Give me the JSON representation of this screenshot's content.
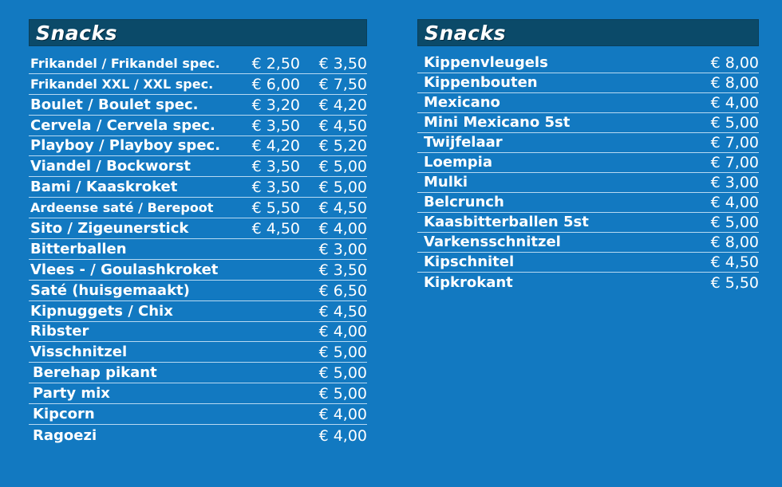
{
  "left_panel": {
    "title": "Snacks",
    "items": [
      {
        "name": "Frikandel / Frikandel spec.",
        "price1": "€ 2,50",
        "price2": "€ 3,50"
      },
      {
        "name": "Frikandel XXL / XXL spec.",
        "price1": "€ 6,00",
        "price2": "€ 7,50"
      },
      {
        "name": "Boulet  / Boulet spec.",
        "price1": "€ 3,20",
        "price2": "€ 4,20"
      },
      {
        "name": "Cervela / Cervela spec.",
        "price1": "€ 3,50",
        "price2": "€ 4,50"
      },
      {
        "name": "Playboy / Playboy spec.",
        "price1": "€ 4,20",
        "price2": "€ 5,20"
      },
      {
        "name": "Viandel / Bockworst",
        "price1": "€ 3,50",
        "price2": "€ 5,00"
      },
      {
        "name": "Bami / Kaaskroket",
        "price1": "€ 3,50",
        "price2": "€ 5,00"
      },
      {
        "name": "Ardeense saté / Berepoot",
        "price1": "€ 5,50",
        "price2": "€ 4,50"
      },
      {
        "name": "Sito / Zigeunerstick",
        "price1": "€ 4,50",
        "price2": "€ 4,00"
      },
      {
        "name": "Bitterballen",
        "price1": "",
        "price2": "€ 3,00"
      },
      {
        "name": "Vlees - / Goulashkroket",
        "price1": "",
        "price2": "€ 3,50"
      },
      {
        "name": "Saté (huisgemaakt)",
        "price1": "",
        "price2": "€ 6,50"
      },
      {
        "name": "Kipnuggets / Chix",
        "price1": "",
        "price2": "€ 4,50"
      },
      {
        "name": "Ribster",
        "price1": "",
        "price2": "€ 4,00"
      },
      {
        "name": "Visschnitzel",
        "price1": "",
        "price2": "€ 5,00"
      },
      {
        "name": "Berehap pikant",
        "price1": "",
        "price2": "€ 5,00"
      },
      {
        "name": "Party mix",
        "price1": "",
        "price2": "€ 5,00"
      },
      {
        "name": "Kipcorn",
        "price1": "",
        "price2": "€ 4,00"
      },
      {
        "name": "Ragoezi",
        "price1": "",
        "price2": "€ 4,00"
      }
    ]
  },
  "right_panel": {
    "title": "Snacks",
    "items": [
      {
        "name": "Kippenvleugels",
        "price": "€ 8,00"
      },
      {
        "name": "Kippenbouten",
        "price": "€ 8,00"
      },
      {
        "name": "Mexicano",
        "price": "€ 4,00"
      },
      {
        "name": "Mini Mexicano 5st",
        "price": "€ 5,00"
      },
      {
        "name": "Twijfelaar",
        "price": "€ 7,00"
      },
      {
        "name": "Loempia",
        "price": "€ 7,00"
      },
      {
        "name": "Mulki",
        "price": "€ 3,00"
      },
      {
        "name": "Belcrunch",
        "price": "€ 4,00"
      },
      {
        "name": "Kaasbitterballen 5st",
        "price": "€ 5,00"
      },
      {
        "name": "Varkensschnitzel",
        "price": "€ 8,00"
      },
      {
        "name": "Kipschnitel",
        "price": "€ 4,50"
      },
      {
        "name": "Kipkrokant",
        "price": "€ 5,50"
      }
    ]
  },
  "colors": {
    "background": "#1279c1",
    "header_bg": "#0b4a69",
    "separator": "#b7d9f2",
    "text": "#ffffff"
  }
}
